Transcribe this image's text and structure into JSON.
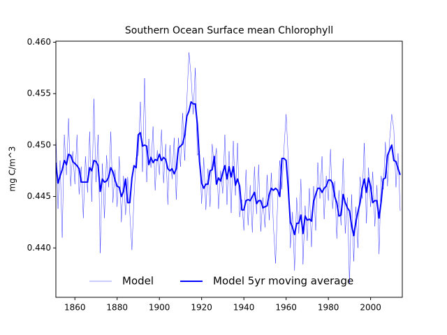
{
  "chart_data": {
    "type": "line",
    "title": "Southern Ocean Surface mean Chlorophyll",
    "ylabel": "mg C/m^3",
    "x": [
      1851,
      1852,
      1853,
      1854,
      1855,
      1856,
      1857,
      1858,
      1859,
      1860,
      1861,
      1862,
      1863,
      1864,
      1865,
      1866,
      1867,
      1868,
      1869,
      1870,
      1871,
      1872,
      1873,
      1874,
      1875,
      1876,
      1877,
      1878,
      1879,
      1880,
      1881,
      1882,
      1883,
      1884,
      1885,
      1886,
      1887,
      1888,
      1889,
      1890,
      1891,
      1892,
      1893,
      1894,
      1895,
      1896,
      1897,
      1898,
      1899,
      1900,
      1901,
      1902,
      1903,
      1904,
      1905,
      1906,
      1907,
      1908,
      1909,
      1910,
      1911,
      1912,
      1913,
      1914,
      1915,
      1916,
      1917,
      1918,
      1919,
      1920,
      1921,
      1922,
      1923,
      1924,
      1925,
      1926,
      1927,
      1928,
      1929,
      1930,
      1931,
      1932,
      1933,
      1934,
      1935,
      1936,
      1937,
      1938,
      1939,
      1940,
      1941,
      1942,
      1943,
      1944,
      1945,
      1946,
      1947,
      1948,
      1949,
      1950,
      1951,
      1952,
      1953,
      1954,
      1955,
      1956,
      1957,
      1958,
      1959,
      1960,
      1961,
      1962,
      1963,
      1964,
      1965,
      1966,
      1967,
      1968,
      1969,
      1970,
      1971,
      1972,
      1973,
      1974,
      1975,
      1976,
      1977,
      1978,
      1979,
      1980,
      1981,
      1982,
      1983,
      1984,
      1985,
      1986,
      1987,
      1988,
      1989,
      1990,
      1991,
      1992,
      1993,
      1994,
      1995,
      1996,
      1997,
      1998,
      1999,
      2000,
      2001,
      2002,
      2003,
      2004,
      2005,
      2006,
      2007,
      2008,
      2009,
      2010,
      2011,
      2012,
      2013,
      2014
    ],
    "series": [
      {
        "name": "Model",
        "color": "#0000ff",
        "width": 0.4,
        "values": [
          0.4513,
          0.4438,
          0.4485,
          0.441,
          0.451,
          0.4471,
          0.4526,
          0.446,
          0.4494,
          0.4462,
          0.451,
          0.4452,
          0.4479,
          0.4429,
          0.4489,
          0.4454,
          0.4513,
          0.4445,
          0.4545,
          0.4464,
          0.451,
          0.4395,
          0.4482,
          0.4429,
          0.449,
          0.4459,
          0.4513,
          0.4444,
          0.4476,
          0.444,
          0.4489,
          0.4425,
          0.447,
          0.4432,
          0.4469,
          0.4434,
          0.4398,
          0.445,
          0.4488,
          0.449,
          0.4542,
          0.4474,
          0.4565,
          0.4464,
          0.4506,
          0.4478,
          0.4518,
          0.4456,
          0.4495,
          0.4471,
          0.4515,
          0.4463,
          0.4501,
          0.4442,
          0.45,
          0.4467,
          0.4507,
          0.4447,
          0.4507,
          0.4479,
          0.4531,
          0.4485,
          0.4543,
          0.459,
          0.4567,
          0.453,
          0.4575,
          0.449,
          0.4494,
          0.4443,
          0.4488,
          0.4437,
          0.4477,
          0.444,
          0.4501,
          0.4479,
          0.4497,
          0.4438,
          0.4475,
          0.4453,
          0.451,
          0.4442,
          0.4494,
          0.4434,
          0.4504,
          0.4451,
          0.4502,
          0.443,
          0.4447,
          0.4417,
          0.4476,
          0.4422,
          0.4461,
          0.4415,
          0.4479,
          0.4433,
          0.4481,
          0.4416,
          0.4449,
          0.442,
          0.4471,
          0.4427,
          0.4473,
          0.4421,
          0.4385,
          0.4446,
          0.4485,
          0.4457,
          0.4497,
          0.453,
          0.4488,
          0.44,
          0.4435,
          0.4378,
          0.4449,
          0.4414,
          0.4467,
          0.4384,
          0.4441,
          0.4407,
          0.4458,
          0.4401,
          0.446,
          0.4417,
          0.4483,
          0.4448,
          0.4489,
          0.4428,
          0.447,
          0.4446,
          0.4496,
          0.4438,
          0.4465,
          0.4409,
          0.4456,
          0.4422,
          0.4487,
          0.4414,
          0.4449,
          0.4365,
          0.4452,
          0.4387,
          0.444,
          0.44,
          0.4469,
          0.4448,
          0.4502,
          0.4424,
          0.4478,
          0.444,
          0.4474,
          0.4421,
          0.4461,
          0.4394,
          0.447,
          0.4457,
          0.4503,
          0.446,
          0.4505,
          0.453,
          0.4515,
          0.4459,
          0.4492,
          0.4436
        ]
      },
      {
        "name": "Model 5yr moving average",
        "color": "#0000ff",
        "width": 2,
        "values": [
          0.4483,
          0.4463,
          0.447,
          0.4476,
          0.4485,
          0.4481,
          0.4491,
          0.449,
          0.4484,
          0.4482,
          0.448,
          0.4477,
          0.4464,
          0.4464,
          0.4464,
          0.4464,
          0.4478,
          0.4475,
          0.4485,
          0.4484,
          0.448,
          0.4455,
          0.4467,
          0.4464,
          0.4465,
          0.4469,
          0.4478,
          0.4474,
          0.4466,
          0.446,
          0.4459,
          0.445,
          0.4455,
          0.4467,
          0.4444,
          0.4444,
          0.4468,
          0.448,
          0.4478,
          0.451,
          0.4512,
          0.4499,
          0.45,
          0.4499,
          0.4481,
          0.4488,
          0.4483,
          0.4486,
          0.4485,
          0.4491,
          0.4485,
          0.4488,
          0.4486,
          0.4477,
          0.4475,
          0.4477,
          0.4472,
          0.4477,
          0.4497,
          0.4499,
          0.4501,
          0.451,
          0.4528,
          0.4533,
          0.4542,
          0.454,
          0.454,
          0.452,
          0.4484,
          0.4463,
          0.4458,
          0.4462,
          0.4462,
          0.4475,
          0.4476,
          0.4489,
          0.4462,
          0.4468,
          0.4465,
          0.4473,
          0.448,
          0.4467,
          0.4479,
          0.4469,
          0.4479,
          0.4461,
          0.4467,
          0.446,
          0.4437,
          0.4437,
          0.4446,
          0.4447,
          0.4446,
          0.445,
          0.4454,
          0.4443,
          0.4446,
          0.4446,
          0.4439,
          0.444,
          0.4441,
          0.4452,
          0.4458,
          0.4456,
          0.4458,
          0.4456,
          0.445,
          0.4487,
          0.4487,
          0.4485,
          0.4458,
          0.4425,
          0.442,
          0.4413,
          0.4424,
          0.4424,
          0.4432,
          0.4414,
          0.4431,
          0.4427,
          0.4428,
          0.4426,
          0.4445,
          0.4452,
          0.4458,
          0.4458,
          0.4454,
          0.4458,
          0.446,
          0.4466,
          0.4466,
          0.4463,
          0.445,
          0.4444,
          0.4431,
          0.4432,
          0.4452,
          0.4444,
          0.4439,
          0.4436,
          0.4422,
          0.4412,
          0.4425,
          0.4435,
          0.4444,
          0.4458,
          0.4467,
          0.4454,
          0.4468,
          0.446,
          0.4444,
          0.4446,
          0.4446,
          0.4429,
          0.4445,
          0.4467,
          0.4468,
          0.449,
          0.4495,
          0.45,
          0.4485,
          0.4484,
          0.4477,
          0.4471
        ]
      }
    ],
    "xlim": [
      1851,
      2015
    ],
    "xticks": [
      1860,
      1880,
      1900,
      1920,
      1940,
      1960,
      1980,
      2000
    ],
    "ylim": [
      0.4352,
      0.4601
    ],
    "yticks": [
      {
        "value": 0.44,
        "label": "0.440"
      },
      0.445,
      {
        "value": 0.45,
        "label": "0.450"
      },
      0.455,
      {
        "value": 0.46,
        "label": "0.460"
      }
    ],
    "legend": "lower center"
  }
}
